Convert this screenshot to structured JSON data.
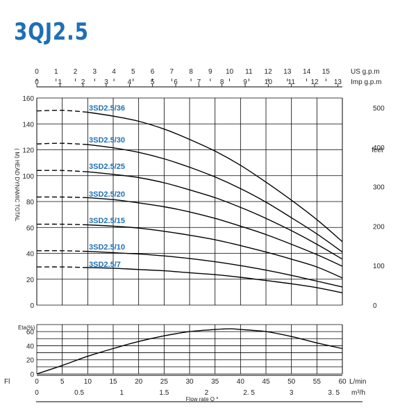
{
  "title": "3QJ2.5",
  "chart_data": [
    {
      "type": "line",
      "name": "head-curves",
      "ylabel": "( M) HEAD DYNAMIC TOTAL",
      "ylabel_right": "feet",
      "ylim": [
        0,
        160
      ],
      "yticks": [
        0,
        20,
        40,
        60,
        80,
        100,
        120,
        140,
        160
      ],
      "yticks_right": [
        0,
        100,
        200,
        300,
        400,
        500
      ],
      "xlim": [
        0,
        60
      ],
      "top_axis_us": {
        "label": "US g.p.m",
        "ticks": [
          0,
          1,
          2,
          3,
          4,
          5,
          6,
          7,
          8,
          9,
          10,
          11,
          12,
          13,
          14,
          15
        ]
      },
      "top_axis_imp": {
        "label": "Imp g.p.m",
        "ticks": [
          0,
          1,
          2,
          3,
          4,
          5,
          6,
          7,
          8,
          9,
          10,
          11,
          12,
          13
        ]
      },
      "series": [
        {
          "name": "3SD2.5/36",
          "x": [
            0,
            5,
            10,
            15,
            20,
            25,
            30,
            35,
            40,
            45,
            50,
            55,
            60
          ],
          "y": [
            150,
            150.5,
            149,
            146,
            142,
            136,
            128,
            119,
            108,
            95,
            81,
            66,
            49
          ]
        },
        {
          "name": "3SD2.5/30",
          "x": [
            0,
            5,
            10,
            15,
            20,
            25,
            30,
            35,
            40,
            45,
            50,
            55,
            60
          ],
          "y": [
            124.5,
            125,
            124,
            121.5,
            118,
            113,
            106.5,
            99,
            90,
            79.5,
            67.5,
            55,
            41
          ]
        },
        {
          "name": "3SD2.5/25",
          "x": [
            0,
            5,
            10,
            15,
            20,
            25,
            30,
            35,
            40,
            45,
            50,
            55,
            60
          ],
          "y": [
            104,
            104,
            103,
            101,
            98.5,
            94.5,
            89,
            83,
            75.5,
            67,
            57.5,
            47,
            35.5
          ]
        },
        {
          "name": "3SD2.5/20",
          "x": [
            0,
            5,
            10,
            15,
            20,
            25,
            30,
            35,
            40,
            45,
            50,
            55,
            60
          ],
          "y": [
            83.5,
            83.5,
            83,
            81.5,
            79,
            76,
            72,
            67,
            61,
            54.5,
            47,
            39,
            30
          ]
        },
        {
          "name": "3SD2.5/15",
          "x": [
            0,
            5,
            10,
            15,
            20,
            25,
            30,
            35,
            40,
            45,
            50,
            55,
            60
          ],
          "y": [
            62.5,
            62.5,
            62,
            61,
            59.5,
            57,
            54,
            50.5,
            46,
            41,
            35.5,
            29.5,
            21
          ]
        },
        {
          "name": "3SD2.5/10",
          "x": [
            0,
            5,
            10,
            15,
            20,
            25,
            30,
            35,
            40,
            45,
            50,
            55,
            60
          ],
          "y": [
            42,
            42,
            41.5,
            40.5,
            39.5,
            38,
            36,
            33.5,
            30.5,
            27,
            23,
            18.5,
            14
          ]
        },
        {
          "name": "3SD2.5/7",
          "x": [
            0,
            5,
            10,
            15,
            20,
            25,
            30,
            35,
            40,
            45,
            50,
            55,
            60
          ],
          "y": [
            29.5,
            29.5,
            29,
            28.5,
            27.5,
            26.5,
            25,
            23.5,
            21.5,
            19,
            16.5,
            13.5,
            9.5
          ]
        }
      ]
    },
    {
      "type": "line",
      "name": "efficiency",
      "ylabel": "Eta(%)",
      "ylim": [
        0,
        70
      ],
      "yticks": [
        0,
        20,
        40,
        60
      ],
      "x_label_left": "Fl",
      "xlim": [
        0,
        60
      ],
      "xticks": [
        0,
        5,
        10,
        15,
        20,
        25,
        30,
        35,
        40,
        45,
        50,
        55,
        60
      ],
      "x_unit": "L/min",
      "x2_ticks": [
        "0",
        "0.5",
        "1",
        "1.5",
        "2",
        "2. 5",
        "3",
        "3. 5"
      ],
      "x2_unit": "m³/h",
      "xlabel": "Flow rate Q *",
      "series": [
        {
          "x": [
            0,
            5,
            10,
            15,
            20,
            25,
            30,
            35,
            38,
            40,
            45,
            50,
            55,
            60
          ],
          "y": [
            0,
            12,
            25,
            36,
            46,
            54,
            60,
            63,
            64,
            63,
            60,
            53,
            44,
            36
          ]
        }
      ]
    }
  ]
}
